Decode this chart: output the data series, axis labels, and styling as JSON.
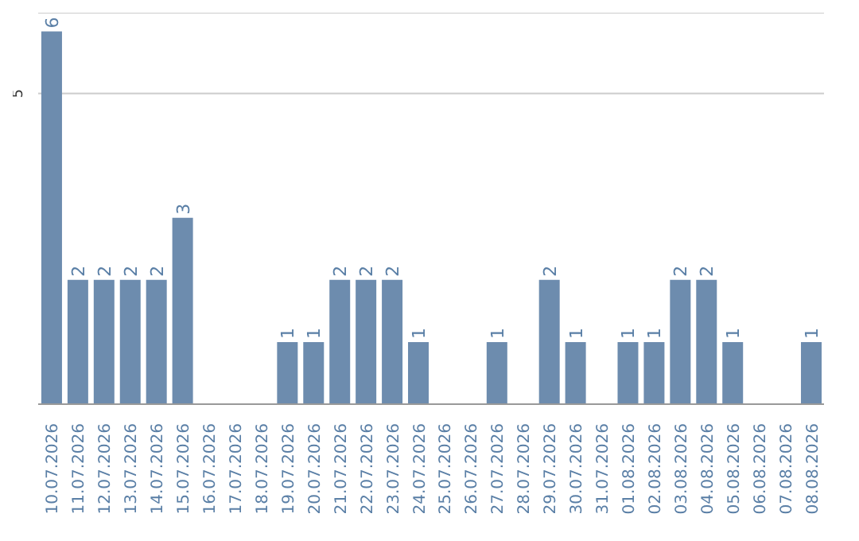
{
  "chart_data": {
    "type": "bar",
    "categories": [
      "10.07.2026",
      "11.07.2026",
      "12.07.2026",
      "13.07.2026",
      "14.07.2026",
      "15.07.2026",
      "16.07.2026",
      "17.07.2026",
      "18.07.2026",
      "19.07.2026",
      "20.07.2026",
      "21.07.2026",
      "22.07.2026",
      "23.07.2026",
      "24.07.2026",
      "25.07.2026",
      "26.07.2026",
      "27.07.2026",
      "28.07.2026",
      "29.07.2026",
      "30.07.2026",
      "31.07.2026",
      "01.08.2026",
      "02.08.2026",
      "03.08.2026",
      "04.08.2026",
      "05.08.2026",
      "06.08.2026",
      "07.08.2026",
      "08.08.2026"
    ],
    "values": [
      6,
      2,
      2,
      2,
      2,
      3,
      0,
      0,
      0,
      1,
      1,
      2,
      2,
      2,
      1,
      0,
      0,
      1,
      0,
      2,
      1,
      0,
      1,
      1,
      2,
      2,
      1,
      0,
      0,
      1
    ],
    "value_labels": [
      "6",
      "2",
      "2",
      "2",
      "2",
      "3",
      null,
      null,
      null,
      "1",
      "1",
      "2",
      "2",
      "2",
      "1",
      null,
      null,
      "1",
      null,
      "2",
      "1",
      null,
      "1",
      "1",
      "2",
      "2",
      "1",
      null,
      null,
      "1"
    ],
    "color": "#6d8cae",
    "ylim": [
      0,
      6.3
    ],
    "yticks": [
      5
    ],
    "grid": "y"
  }
}
